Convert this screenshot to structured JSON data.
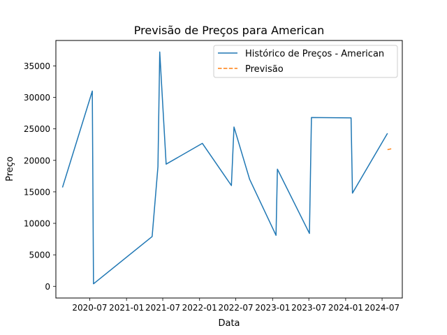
{
  "chart_data": {
    "type": "line",
    "title": "Previsão de Preços para American",
    "xlabel": "Data",
    "ylabel": "Preço",
    "x_axis_type": "date",
    "xlim": [
      "2020-01-14",
      "2024-10-10"
    ],
    "ylim": [
      -1855,
      39035
    ],
    "xticks": [
      {
        "date": "2020-07-01",
        "label": "2020-07"
      },
      {
        "date": "2021-01-01",
        "label": "2021-01"
      },
      {
        "date": "2021-07-01",
        "label": "2021-07"
      },
      {
        "date": "2022-01-01",
        "label": "2022-01"
      },
      {
        "date": "2022-07-01",
        "label": "2022-07"
      },
      {
        "date": "2023-01-01",
        "label": "2023-01"
      },
      {
        "date": "2023-07-01",
        "label": "2023-07"
      },
      {
        "date": "2024-01-01",
        "label": "2024-01"
      },
      {
        "date": "2024-07-01",
        "label": "2024-07"
      }
    ],
    "yticks": [
      0,
      5000,
      10000,
      15000,
      20000,
      25000,
      30000,
      35000
    ],
    "grid": false,
    "legend_position": "top-right",
    "series": [
      {
        "name": "Histórico de Preços - American",
        "color": "#1f77b4",
        "style": "solid",
        "points": [
          {
            "x": "2020-02-16",
            "y": 15700
          },
          {
            "x": "2020-07-14",
            "y": 31000
          },
          {
            "x": "2020-07-20",
            "y": 400
          },
          {
            "x": "2021-05-09",
            "y": 7900
          },
          {
            "x": "2021-06-07",
            "y": 19000
          },
          {
            "x": "2021-06-16",
            "y": 37200
          },
          {
            "x": "2021-07-18",
            "y": 19400
          },
          {
            "x": "2022-01-15",
            "y": 22700
          },
          {
            "x": "2022-06-09",
            "y": 16000
          },
          {
            "x": "2022-06-22",
            "y": 25300
          },
          {
            "x": "2022-09-08",
            "y": 17000
          },
          {
            "x": "2023-01-18",
            "y": 8100
          },
          {
            "x": "2023-01-25",
            "y": 18600
          },
          {
            "x": "2023-07-04",
            "y": 8400
          },
          {
            "x": "2023-07-14",
            "y": 26800
          },
          {
            "x": "2024-01-28",
            "y": 26750
          },
          {
            "x": "2024-02-04",
            "y": 14800
          },
          {
            "x": "2024-07-28",
            "y": 24300
          }
        ]
      },
      {
        "name": "Previsão",
        "color": "#ff7f0e",
        "style": "dashed",
        "points": [
          {
            "x": "2024-07-28",
            "y": 21700
          },
          {
            "x": "2024-08-24",
            "y": 21900
          }
        ]
      }
    ]
  }
}
